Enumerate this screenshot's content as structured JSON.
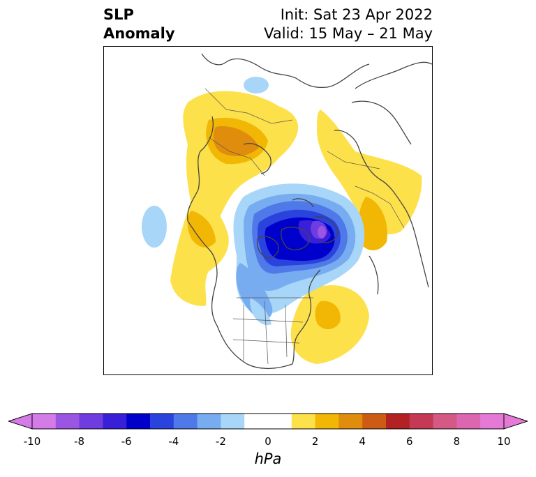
{
  "title": {
    "variable_line1": "SLP",
    "variable_line2": "Anomaly",
    "init": "Init: Sat 23 Apr 2022",
    "valid": "Valid: 15 May – 21 May"
  },
  "colorbar": {
    "units": "hPa",
    "ticks": [
      "-10",
      "-8",
      "-6",
      "-4",
      "-2",
      "0",
      "2",
      "4",
      "6",
      "8",
      "10"
    ],
    "colors": [
      "#d57be8",
      "#9b55e3",
      "#6f3ce0",
      "#3a1fd8",
      "#0000cc",
      "#2a43dd",
      "#4f79e8",
      "#78acf0",
      "#a8d6f8",
      "#ffffff",
      "#ffffff",
      "#fde14a",
      "#f2b705",
      "#e08d0e",
      "#cc5c14",
      "#b22222",
      "#c43a55",
      "#d45a85",
      "#dd66b0",
      "#e57ad6"
    ],
    "under_color": "#d57be8",
    "over_color": "#e57ad6"
  },
  "map": {
    "projection": "north-polar-stereographic",
    "features": [
      "coastlines",
      "country-borders",
      "us-state-borders"
    ]
  }
}
